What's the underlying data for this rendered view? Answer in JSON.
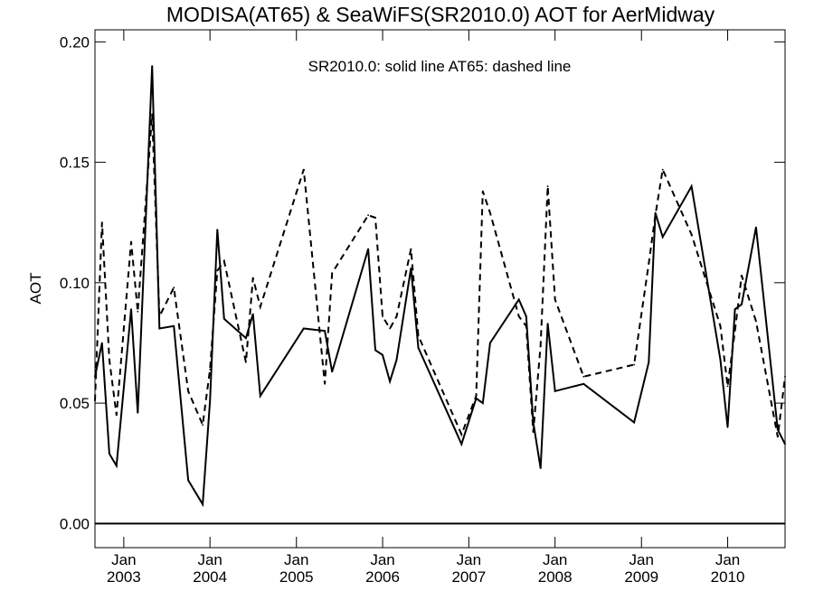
{
  "chart_data": {
    "type": "line",
    "title": "MODISA(AT65) & SeaWiFS(SR2010.0)  AOT for AerMidway",
    "ylabel": "AOT",
    "xlabel": "",
    "annotation": "SR2010.0: solid line   AT65: dashed line",
    "xlim": [
      "2002-09-01",
      "2010-09-01"
    ],
    "ylim": [
      -0.01,
      0.205
    ],
    "y_ticks": [
      0.0,
      0.05,
      0.1,
      0.15,
      0.2
    ],
    "y_tick_labels": [
      "0.00",
      "0.05",
      "0.10",
      "0.15",
      "0.20"
    ],
    "x_ticks": [
      "2003-01-01",
      "2004-01-01",
      "2005-01-01",
      "2006-01-01",
      "2007-01-01",
      "2008-01-01",
      "2009-01-01",
      "2010-01-01"
    ],
    "x_tick_month_labels": [
      "Jan",
      "Jan",
      "Jan",
      "Jan",
      "Jan",
      "Jan",
      "Jan",
      "Jan"
    ],
    "x_tick_year_labels": [
      "2003",
      "2004",
      "2005",
      "2006",
      "2007",
      "2008",
      "2009",
      "2010"
    ],
    "reference_line_y": 0.0,
    "grid": false,
    "series": [
      {
        "name": "SR2010.0",
        "style": "solid",
        "color": "#000000",
        "points": [
          [
            "2002-09-01",
            0.061
          ],
          [
            "2002-10-01",
            0.075
          ],
          [
            "2002-11-01",
            0.029
          ],
          [
            "2002-12-01",
            0.024
          ],
          [
            "2003-02-01",
            0.089
          ],
          [
            "2003-03-01",
            0.046
          ],
          [
            "2003-05-01",
            0.19
          ],
          [
            "2003-06-01",
            0.081
          ],
          [
            "2003-08-01",
            0.082
          ],
          [
            "2003-10-01",
            0.018
          ],
          [
            "2003-12-01",
            0.008
          ],
          [
            "2004-01-01",
            0.051
          ],
          [
            "2004-02-01",
            0.122
          ],
          [
            "2004-03-01",
            0.085
          ],
          [
            "2004-06-01",
            0.077
          ],
          [
            "2004-07-01",
            0.087
          ],
          [
            "2004-08-01",
            0.053
          ],
          [
            "2005-02-01",
            0.081
          ],
          [
            "2005-05-01",
            0.08
          ],
          [
            "2005-06-01",
            0.063
          ],
          [
            "2005-11-01",
            0.114
          ],
          [
            "2005-12-01",
            0.072
          ],
          [
            "2006-01-01",
            0.07
          ],
          [
            "2006-02-01",
            0.059
          ],
          [
            "2006-03-01",
            0.068
          ],
          [
            "2006-05-01",
            0.106
          ],
          [
            "2006-06-01",
            0.073
          ],
          [
            "2006-12-01",
            0.033
          ],
          [
            "2007-02-01",
            0.052
          ],
          [
            "2007-03-01",
            0.05
          ],
          [
            "2007-04-01",
            0.075
          ],
          [
            "2007-08-01",
            0.093
          ],
          [
            "2007-09-01",
            0.086
          ],
          [
            "2007-10-01",
            0.042
          ],
          [
            "2007-11-01",
            0.023
          ],
          [
            "2007-12-01",
            0.083
          ],
          [
            "2008-01-01",
            0.055
          ],
          [
            "2008-05-01",
            0.058
          ],
          [
            "2008-12-01",
            0.042
          ],
          [
            "2009-02-01",
            0.067
          ],
          [
            "2009-03-01",
            0.129
          ],
          [
            "2009-04-01",
            0.119
          ],
          [
            "2009-08-01",
            0.14
          ],
          [
            "2009-12-01",
            0.068
          ],
          [
            "2010-01-01",
            0.04
          ],
          [
            "2010-02-01",
            0.089
          ],
          [
            "2010-03-01",
            0.091
          ],
          [
            "2010-05-01",
            0.123
          ],
          [
            "2010-08-01",
            0.039
          ],
          [
            "2010-09-01",
            0.033
          ]
        ]
      },
      {
        "name": "AT65",
        "style": "dashed",
        "color": "#000000",
        "points": [
          [
            "2002-09-01",
            0.051
          ],
          [
            "2002-10-01",
            0.125
          ],
          [
            "2002-11-01",
            0.068
          ],
          [
            "2002-12-01",
            0.045
          ],
          [
            "2003-02-01",
            0.117
          ],
          [
            "2003-03-01",
            0.088
          ],
          [
            "2003-05-01",
            0.17
          ],
          [
            "2003-06-01",
            0.086
          ],
          [
            "2003-08-01",
            0.098
          ],
          [
            "2003-10-01",
            0.055
          ],
          [
            "2003-12-01",
            0.041
          ],
          [
            "2004-01-01",
            0.064
          ],
          [
            "2004-02-01",
            0.105
          ],
          [
            "2004-03-01",
            0.109
          ],
          [
            "2004-06-01",
            0.067
          ],
          [
            "2004-07-01",
            0.102
          ],
          [
            "2004-08-01",
            0.09
          ],
          [
            "2005-02-01",
            0.147
          ],
          [
            "2005-05-01",
            0.058
          ],
          [
            "2005-06-01",
            0.104
          ],
          [
            "2005-11-01",
            0.128
          ],
          [
            "2005-12-01",
            0.127
          ],
          [
            "2006-01-01",
            0.086
          ],
          [
            "2006-02-01",
            0.081
          ],
          [
            "2006-03-01",
            0.086
          ],
          [
            "2006-05-01",
            0.114
          ],
          [
            "2006-06-01",
            0.078
          ],
          [
            "2006-12-01",
            0.037
          ],
          [
            "2007-02-01",
            0.053
          ],
          [
            "2007-03-01",
            0.138
          ],
          [
            "2007-04-01",
            0.129
          ],
          [
            "2007-08-01",
            0.086
          ],
          [
            "2007-09-01",
            0.082
          ],
          [
            "2007-10-01",
            0.038
          ],
          [
            "2007-11-01",
            0.074
          ],
          [
            "2007-12-01",
            0.14
          ],
          [
            "2008-01-01",
            0.093
          ],
          [
            "2008-05-01",
            0.061
          ],
          [
            "2008-12-01",
            0.066
          ],
          [
            "2009-02-01",
            0.108
          ],
          [
            "2009-03-01",
            0.128
          ],
          [
            "2009-04-01",
            0.147
          ],
          [
            "2009-08-01",
            0.12
          ],
          [
            "2009-12-01",
            0.082
          ],
          [
            "2010-01-01",
            0.057
          ],
          [
            "2010-02-01",
            0.08
          ],
          [
            "2010-03-01",
            0.103
          ],
          [
            "2010-05-01",
            0.084
          ],
          [
            "2010-08-01",
            0.036
          ],
          [
            "2010-09-01",
            0.061
          ]
        ]
      }
    ]
  }
}
